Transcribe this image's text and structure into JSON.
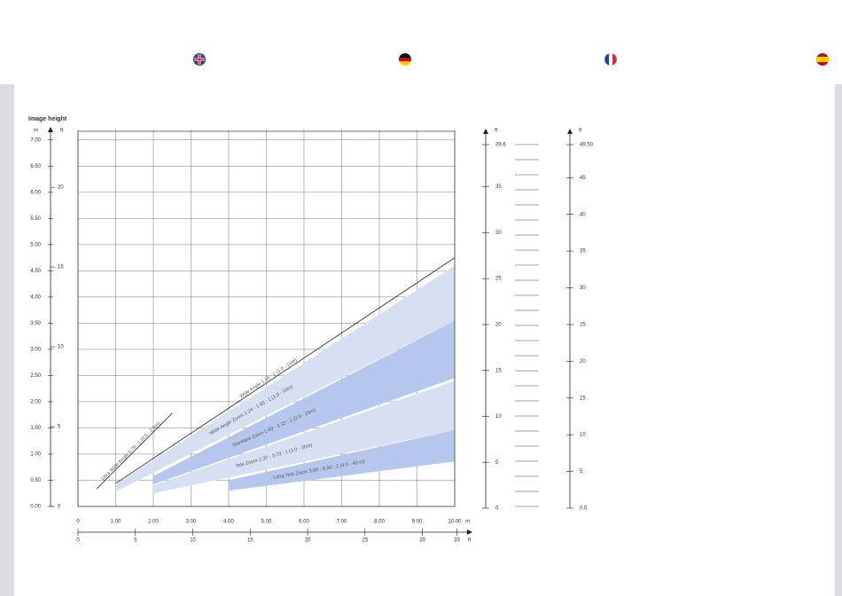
{
  "chart_data": {
    "type": "throw-chart",
    "title": "Image height",
    "y_unit": "m",
    "y2_unit": "ft",
    "x_unit": "m",
    "x2_unit": "ft",
    "xlim": [
      0,
      10
    ],
    "xticks": [
      0,
      {
        "value": 1,
        "label": "1.00"
      },
      {
        "value": 2,
        "label": "2.00"
      },
      {
        "value": 3,
        "label": "3.00"
      },
      {
        "value": 4,
        "label": "4.00"
      },
      {
        "value": 5,
        "label": "5.00"
      },
      {
        "value": 6,
        "label": "6.00"
      },
      {
        "value": 7,
        "label": "7.00"
      },
      {
        "value": 8,
        "label": "8.00"
      },
      {
        "value": 9,
        "label": "9.00"
      },
      {
        "value": 10,
        "label": "10.00"
      }
    ],
    "x2lim": [
      0,
      32.81
    ],
    "x2ticks": [
      0,
      5,
      10,
      15,
      20,
      25,
      30,
      33
    ],
    "ylim": [
      0,
      7.2
    ],
    "yticks": [
      {
        "value": 0,
        "label": "0.00"
      },
      {
        "value": 0.5,
        "label": "0.50"
      },
      {
        "value": 1,
        "label": "1.00"
      },
      {
        "value": 1.5,
        "label": "1.50"
      },
      {
        "value": 2,
        "label": "2.00"
      },
      {
        "value": 2.5,
        "label": "2.50"
      },
      {
        "value": 3,
        "label": "3.00"
      },
      {
        "value": 3.5,
        "label": "3.50"
      },
      {
        "value": 4,
        "label": "4.00"
      },
      {
        "value": 4.5,
        "label": "4.50"
      },
      {
        "value": 5,
        "label": "5.00"
      },
      {
        "value": 5.5,
        "label": "5.50"
      },
      {
        "value": 6,
        "label": "6.00"
      },
      {
        "value": 6.5,
        "label": "6.50"
      },
      {
        "value": 7,
        "label": "7.00"
      }
    ],
    "y2lim": [
      0,
      23.62
    ],
    "y2ticks": [
      0,
      5,
      10,
      15,
      20
    ],
    "grid": true,
    "bands": [
      {
        "name": "Wide Angle Zoom 1.24 - 1.60 : 1 (1.0 - 10m)",
        "color": "#d7dff2",
        "x": [
          1,
          10
        ],
        "upper": [
          0.42,
          4.6
        ],
        "lower": [
          0.28,
          3.55
        ]
      },
      {
        "name": "Standard Zoom 1.60 - 2.32 : 1 (2.0 - 15m)",
        "color": "#b5c7ec",
        "x": [
          2,
          10
        ],
        "upper": [
          0.58,
          3.55
        ],
        "lower": [
          0.42,
          2.45
        ]
      },
      {
        "name": "Tele Zoom 2.37 - 3.79 : 1 (3.0 - 30m)",
        "color": "#d7dff2",
        "x": [
          2,
          10
        ],
        "upper": [
          0.4,
          2.4
        ],
        "lower": [
          0.25,
          1.46
        ]
      },
      {
        "name": "Long Tele Zoom 3.80 - 6.50 : 1 (4.0 - 40 m)",
        "color": "#b5c7ec",
        "x": [
          4,
          10
        ],
        "upper": [
          0.5,
          1.46
        ],
        "lower": [
          0.3,
          0.86
        ]
      }
    ],
    "lines": [
      {
        "name": "Ultra Wide Angle 0.79 : 1 (0.5 - 2.5m)",
        "color": "#222222",
        "x": [
          0.5,
          2.5
        ],
        "values": [
          0.34,
          1.78
        ]
      },
      {
        "name": "Wide Angle 1.16 : 1 (1.0 - 10m)",
        "color": "#222222",
        "x": [
          1,
          10
        ],
        "values": [
          0.44,
          4.75
        ]
      }
    ],
    "right_axes": [
      {
        "unit": "ft",
        "lim": [
          0,
          39.6
        ],
        "ticks": [
          0,
          5,
          10,
          15,
          20,
          25,
          30,
          35,
          39.6
        ]
      },
      {
        "unit": "ft",
        "lim": [
          0,
          49.5
        ],
        "ticks": [
          {
            "value": 0,
            "label": "0.0"
          },
          5,
          10,
          15,
          20,
          25,
          30,
          35,
          40,
          45,
          {
            "value": 49.5,
            "label": "49.50"
          }
        ]
      }
    ]
  }
}
